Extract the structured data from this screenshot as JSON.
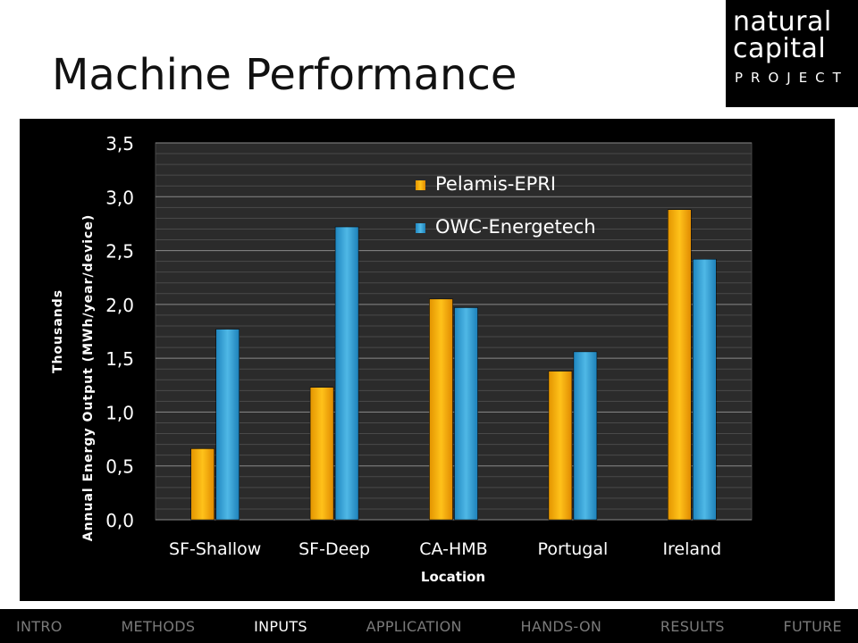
{
  "slide": {
    "title": "Machine Performance"
  },
  "logo": {
    "line1": "natural",
    "line2": "capital",
    "line3": "PROJECT"
  },
  "nav": {
    "items": [
      {
        "label": "INTRO",
        "active": false
      },
      {
        "label": "METHODS",
        "active": false
      },
      {
        "label": "INPUTS",
        "active": true
      },
      {
        "label": "APPLICATION",
        "active": false
      },
      {
        "label": "HANDS-ON",
        "active": false
      },
      {
        "label": "RESULTS",
        "active": false
      },
      {
        "label": "FUTURE",
        "active": false
      }
    ]
  },
  "chart_data": {
    "type": "bar",
    "title": "",
    "xlabel": "Location",
    "ylabel": "Annual Energy Output (MWh/year/device)",
    "ylabel_unit": "Thousands",
    "ylim": [
      0,
      3.5
    ],
    "yticks": [
      "0,0",
      "0,5",
      "1,0",
      "1,5",
      "2,0",
      "2,5",
      "3,0",
      "3,5"
    ],
    "grid": true,
    "legend_position": "top-right",
    "categories": [
      "SF-Shallow",
      "SF-Deep",
      "CA-HMB",
      "Portugal",
      "Ireland"
    ],
    "series": [
      {
        "name": "Pelamis-EPRI",
        "color": "#f5a800",
        "values": [
          0.66,
          1.23,
          2.05,
          1.38,
          2.88
        ]
      },
      {
        "name": "OWC-Energetech",
        "color": "#2e9ed6",
        "values": [
          1.77,
          2.72,
          1.97,
          1.56,
          2.42
        ]
      }
    ]
  }
}
